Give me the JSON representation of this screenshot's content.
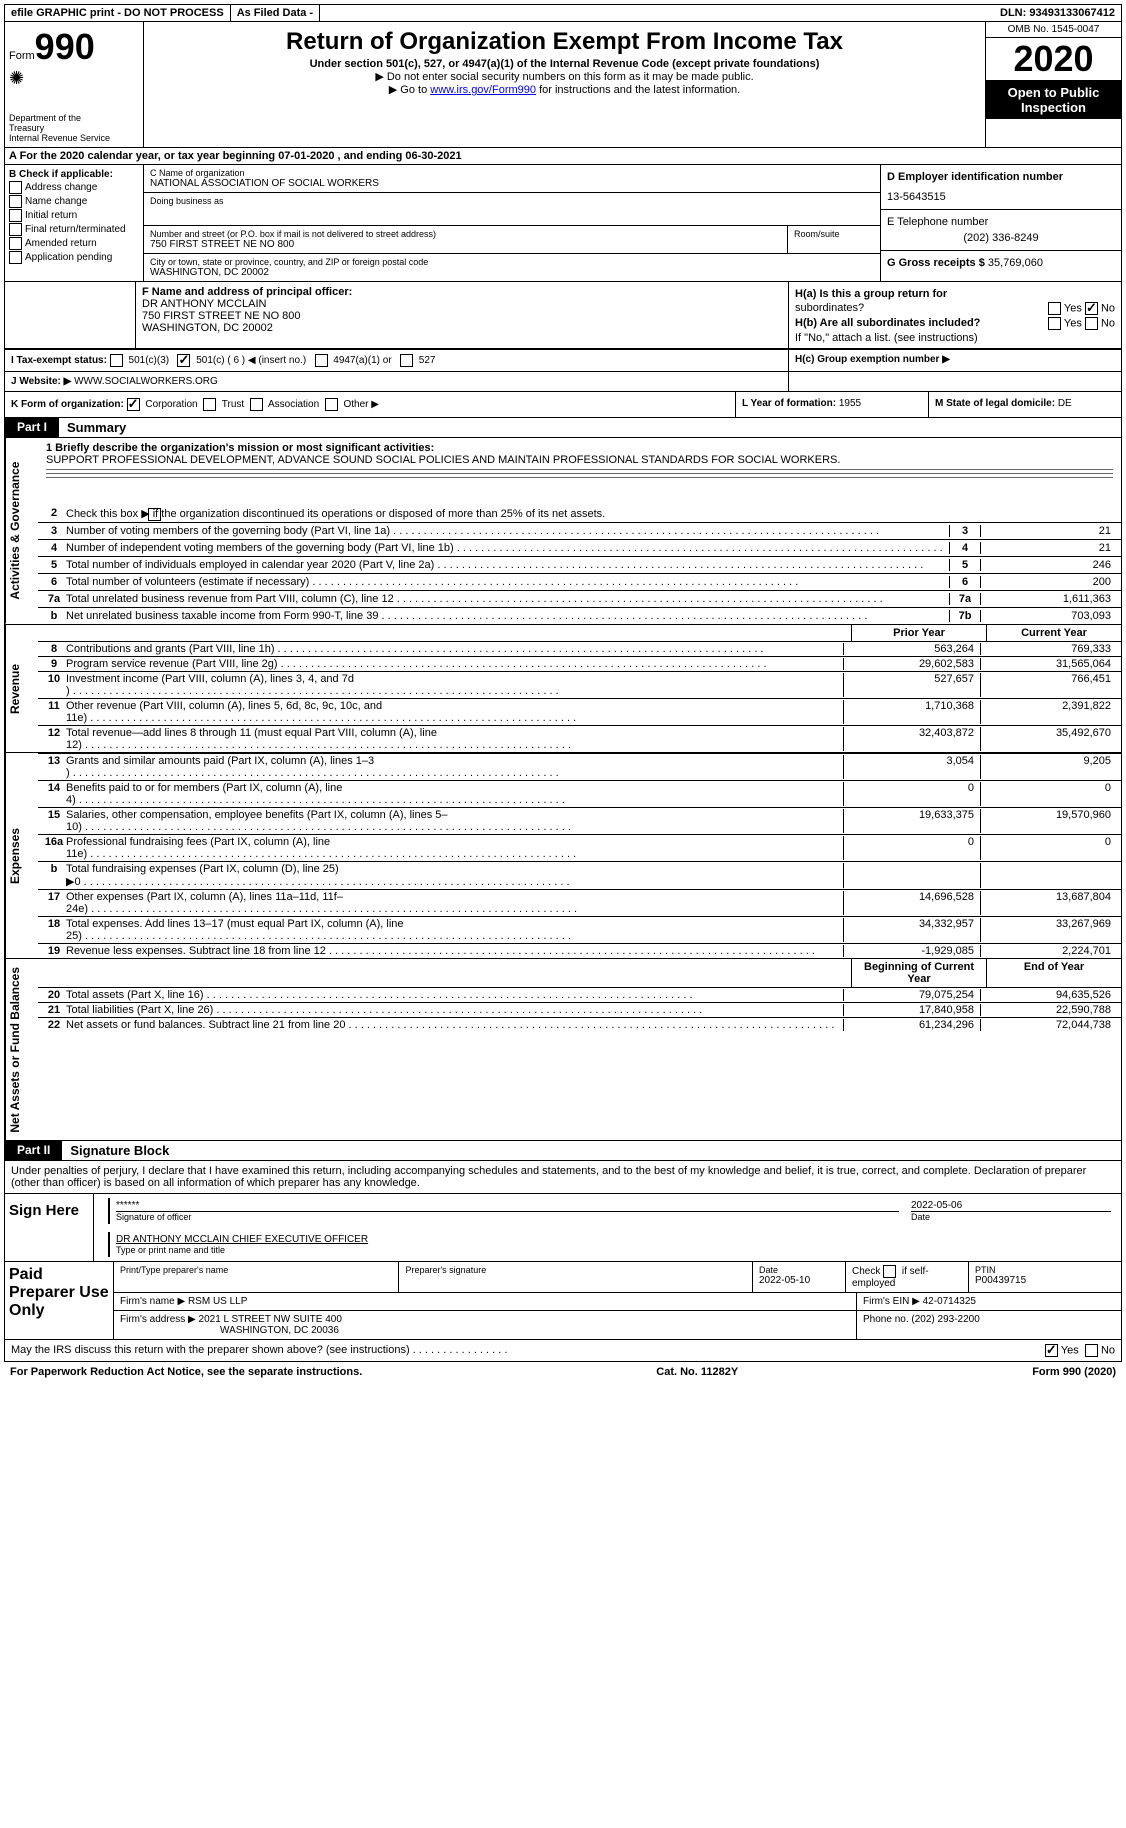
{
  "topbar": {
    "efile": "efile GRAPHIC print - DO NOT PROCESS",
    "asfiled": "As Filed Data -",
    "dln": "DLN: 93493133067412"
  },
  "header": {
    "form_label": "Form",
    "form_num": "990",
    "dept": "Department of the Treasury\nInternal Revenue Service",
    "title": "Return of Organization Exempt From Income Tax",
    "subtitle": "Under section 501(c), 527, or 4947(a)(1) of the Internal Revenue Code (except private foundations)",
    "note1": "▶ Do not enter social security numbers on this form as it may be made public.",
    "note2_pre": "▶ Go to ",
    "note2_link": "www.irs.gov/Form990",
    "note2_post": " for instructions and the latest information.",
    "omb": "OMB No. 1545-0047",
    "year": "2020",
    "open": "Open to Public Inspection"
  },
  "row_a": "A   For the 2020 calendar year, or tax year beginning 07-01-2020   , and ending 06-30-2021",
  "box_b": {
    "label": "B Check if applicable:",
    "items": [
      "Address change",
      "Name change",
      "Initial return",
      "Final return/terminated",
      "Amended return",
      "Application pending"
    ]
  },
  "box_c": {
    "name_label": "C Name of organization",
    "name": "NATIONAL ASSOCIATION OF SOCIAL WORKERS",
    "dba_label": "Doing business as",
    "dba": "",
    "addr_label": "Number and street (or P.O. box if mail is not delivered to street address)",
    "addr": "750 FIRST STREET NE NO 800",
    "room_label": "Room/suite",
    "city_label": "City or town, state or province, country, and ZIP or foreign postal code",
    "city": "WASHINGTON, DC  20002"
  },
  "box_d": {
    "label": "D Employer identification number",
    "ein": "13-5643515",
    "tel_label": "E Telephone number",
    "tel": "(202) 336-8249",
    "gross_label": "G Gross receipts $",
    "gross": "35,769,060"
  },
  "box_f": {
    "label": "F  Name and address of principal officer:",
    "name": "DR ANTHONY MCCLAIN",
    "addr1": "750 FIRST STREET NE NO 800",
    "addr2": "WASHINGTON, DC  20002"
  },
  "box_h": {
    "ha": "H(a)  Is this a group return for",
    "ha2": "subordinates?",
    "hb": "H(b) Are all subordinates included?",
    "hb2": "If \"No,\" attach a list. (see instructions)",
    "hc": "H(c)  Group exemption number ▶",
    "yes": "Yes",
    "no": "No"
  },
  "row_i": {
    "label": "I   Tax-exempt status:",
    "o1": "501(c)(3)",
    "o2": "501(c) ( 6 ) ◀ (insert no.)",
    "o3": "4947(a)(1) or",
    "o4": "527"
  },
  "row_j": {
    "label": "J   Website: ▶",
    "value": "WWW.SOCIALWORKERS.ORG"
  },
  "row_k": {
    "label": "K Form of organization:",
    "corp": "Corporation",
    "trust": "Trust",
    "assoc": "Association",
    "other": "Other ▶"
  },
  "row_l": {
    "label": "L Year of formation:",
    "value": "1955"
  },
  "row_m": {
    "label": "M State of legal domicile:",
    "value": "DE"
  },
  "part1": {
    "label": "Part I",
    "title": "Summary",
    "vtab1": "Activities & Governance",
    "vtab2": "Revenue",
    "vtab3": "Expenses",
    "vtab4": "Net Assets or Fund Balances",
    "line1_label": "1 Briefly describe the organization's mission or most significant activities:",
    "mission": "SUPPORT PROFESSIONAL DEVELOPMENT, ADVANCE SOUND SOCIAL POLICIES AND MAINTAIN PROFESSIONAL STANDARDS FOR SOCIAL WORKERS.",
    "line2": "Check this box ▶          if the organization discontinued its operations or disposed of more than 25% of its net assets.",
    "lines_ag": [
      {
        "n": "3",
        "t": "Number of voting members of the governing body (Part VI, line 1a)",
        "b": "3",
        "v": "21"
      },
      {
        "n": "4",
        "t": "Number of independent voting members of the governing body (Part VI, line 1b)",
        "b": "4",
        "v": "21"
      },
      {
        "n": "5",
        "t": "Total number of individuals employed in calendar year 2020 (Part V, line 2a)",
        "b": "5",
        "v": "246"
      },
      {
        "n": "6",
        "t": "Total number of volunteers (estimate if necessary)",
        "b": "6",
        "v": "200"
      },
      {
        "n": "7a",
        "t": "Total unrelated business revenue from Part VIII, column (C), line 12",
        "b": "7a",
        "v": "1,611,363"
      },
      {
        "n": "b",
        "t": "Net unrelated business taxable income from Form 990-T, line 39",
        "b": "7b",
        "v": "703,093"
      }
    ],
    "col_prior": "Prior Year",
    "col_current": "Current Year",
    "rev_lines": [
      {
        "n": "8",
        "t": "Contributions and grants (Part VIII, line 1h)",
        "p": "563,264",
        "c": "769,333"
      },
      {
        "n": "9",
        "t": "Program service revenue (Part VIII, line 2g)",
        "p": "29,602,583",
        "c": "31,565,064"
      },
      {
        "n": "10",
        "t": "Investment income (Part VIII, column (A), lines 3, 4, and 7d )",
        "p": "527,657",
        "c": "766,451"
      },
      {
        "n": "11",
        "t": "Other revenue (Part VIII, column (A), lines 5, 6d, 8c, 9c, 10c, and 11e)",
        "p": "1,710,368",
        "c": "2,391,822"
      },
      {
        "n": "12",
        "t": "Total revenue—add lines 8 through 11 (must equal Part VIII, column (A), line 12)",
        "p": "32,403,872",
        "c": "35,492,670"
      }
    ],
    "exp_lines": [
      {
        "n": "13",
        "t": "Grants and similar amounts paid (Part IX, column (A), lines 1–3 )",
        "p": "3,054",
        "c": "9,205"
      },
      {
        "n": "14",
        "t": "Benefits paid to or for members (Part IX, column (A), line 4)",
        "p": "0",
        "c": "0"
      },
      {
        "n": "15",
        "t": "Salaries, other compensation, employee benefits (Part IX, column (A), lines 5–10)",
        "p": "19,633,375",
        "c": "19,570,960"
      },
      {
        "n": "16a",
        "t": "Professional fundraising fees (Part IX, column (A), line 11e)",
        "p": "0",
        "c": "0"
      },
      {
        "n": "b",
        "t": "Total fundraising expenses (Part IX, column (D), line 25) ▶0",
        "p": "",
        "c": ""
      },
      {
        "n": "17",
        "t": "Other expenses (Part IX, column (A), lines 11a–11d, 11f–24e)",
        "p": "14,696,528",
        "c": "13,687,804"
      },
      {
        "n": "18",
        "t": "Total expenses. Add lines 13–17 (must equal Part IX, column (A), line 25)",
        "p": "34,332,957",
        "c": "33,267,969"
      },
      {
        "n": "19",
        "t": "Revenue less expenses. Subtract line 18 from line 12",
        "p": "-1,929,085",
        "c": "2,224,701"
      }
    ],
    "col_begin": "Beginning of Current Year",
    "col_end": "End of Year",
    "net_lines": [
      {
        "n": "20",
        "t": "Total assets (Part X, line 16)",
        "p": "79,075,254",
        "c": "94,635,526"
      },
      {
        "n": "21",
        "t": "Total liabilities (Part X, line 26)",
        "p": "17,840,958",
        "c": "22,590,788"
      },
      {
        "n": "22",
        "t": "Net assets or fund balances. Subtract line 21 from line 20",
        "p": "61,234,296",
        "c": "72,044,738"
      }
    ]
  },
  "part2": {
    "label": "Part II",
    "title": "Signature Block",
    "decl": "Under penalties of perjury, I declare that I have examined this return, including accompanying schedules and statements, and to the best of my knowledge and belief, it is true, correct, and complete. Declaration of preparer (other than officer) is based on all information of which preparer has any knowledge.",
    "sign_here": "Sign Here",
    "stars": "******",
    "sig_label": "Signature of officer",
    "date": "2022-05-06",
    "date_label": "Date",
    "officer": "DR ANTHONY MCCLAIN  CHIEF EXECUTIVE OFFICER",
    "officer_label": "Type or print name and title",
    "paid": "Paid Preparer Use Only",
    "prep_name_label": "Print/Type preparer's name",
    "prep_sig_label": "Preparer's signature",
    "prep_date_label": "Date",
    "prep_date": "2022-05-10",
    "self_emp": "Check          if self-employed",
    "ptin_label": "PTIN",
    "ptin": "P00439715",
    "firm_name_label": "Firm's name      ▶",
    "firm_name": "RSM US LLP",
    "firm_ein_label": "Firm's EIN ▶",
    "firm_ein": "42-0714325",
    "firm_addr_label": "Firm's address ▶",
    "firm_addr": "2021 L STREET NW SUITE 400",
    "firm_city": "WASHINGTON, DC  20036",
    "phone_label": "Phone no.",
    "phone": "(202) 293-2200",
    "discuss": "May the IRS discuss this return with the preparer shown above? (see instructions)",
    "yes": "Yes",
    "no": "No"
  },
  "footer": {
    "paperwork": "For Paperwork Reduction Act Notice, see the separate instructions.",
    "cat": "Cat. No. 11282Y",
    "form": "Form 990 (2020)"
  }
}
